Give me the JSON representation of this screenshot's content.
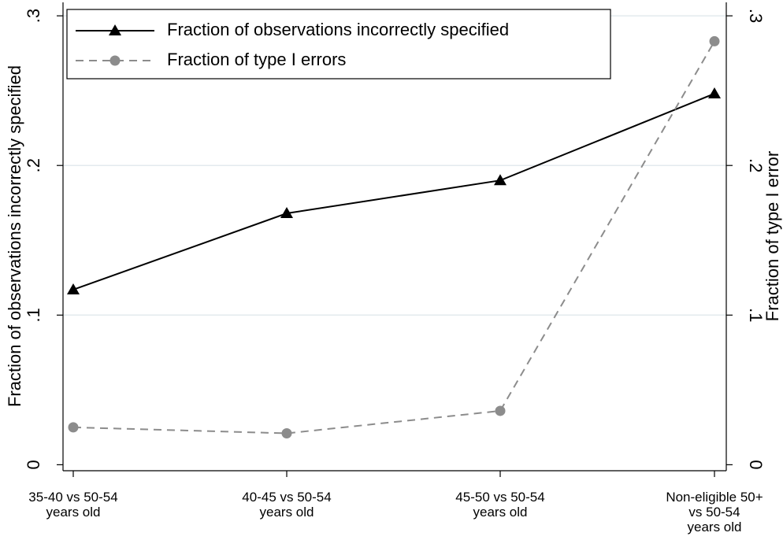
{
  "chart_data": {
    "type": "line",
    "categories": [
      "35-40 vs 50-54\nyears old",
      "40-45 vs 50-54\nyears old",
      "45-50 vs 50-54\nyears old",
      "Non-eligible 50+\nvs 50-54\nyears old"
    ],
    "series": [
      {
        "name": "Fraction of observations incorrectly specified",
        "color": "#000000",
        "marker": "triangle",
        "dash": "solid",
        "values": [
          0.117,
          0.168,
          0.19,
          0.248
        ]
      },
      {
        "name": "Fraction of type I errors",
        "color": "#8c8c8c",
        "marker": "circle",
        "dash": "dashed",
        "axis": "y2",
        "values": [
          0.025,
          0.021,
          0.036,
          0.283
        ]
      }
    ],
    "y_label": "Fraction of observations incorrectly specified",
    "y2_label": "Fraction of type I error",
    "ylim": [
      -0.004,
      0.309
    ],
    "yticks": [
      0,
      {
        "value": 0.1,
        "label": ".1"
      },
      {
        "value": 0.2,
        "label": ".2"
      },
      {
        "value": 0.3,
        "label": ".3"
      }
    ],
    "y2lim": [
      -0.004,
      0.309
    ],
    "y2ticks": [
      0,
      {
        "value": 0.1,
        "label": ".1"
      },
      {
        "value": 0.2,
        "label": ".2"
      },
      {
        "value": 0.3,
        "label": ".3"
      }
    ],
    "grid": true,
    "legend": "top-left"
  }
}
